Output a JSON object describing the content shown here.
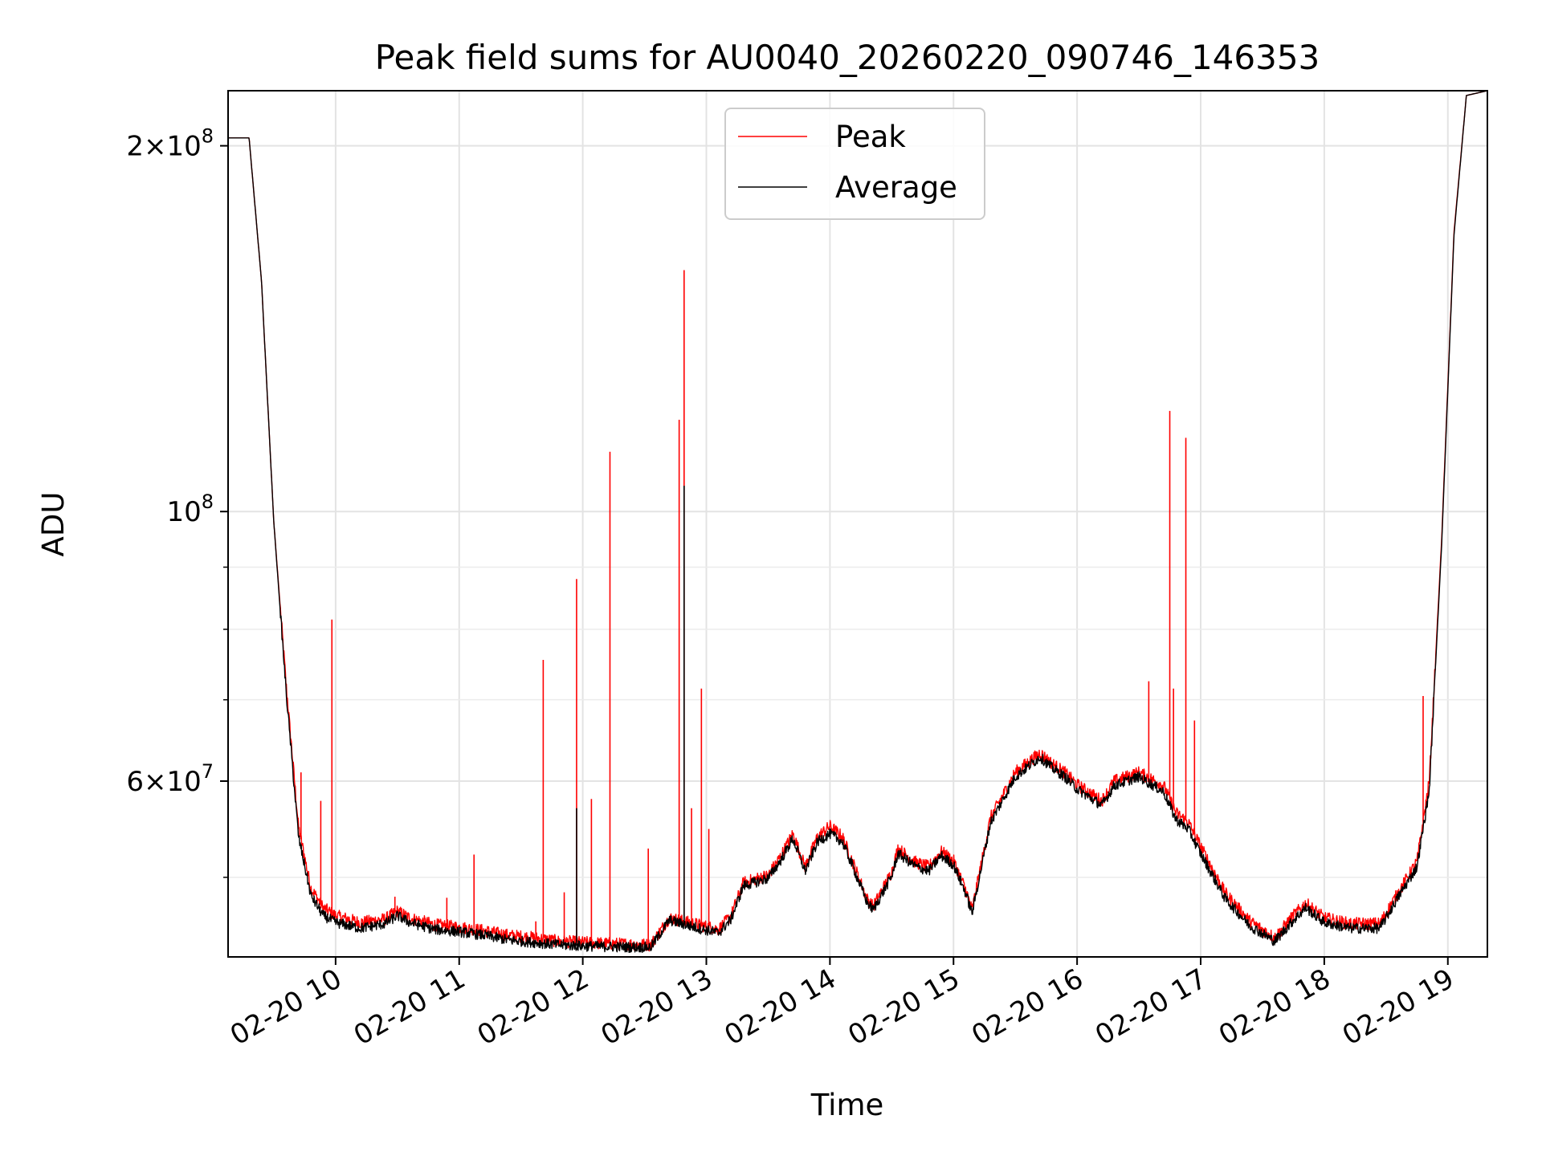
{
  "chart_data": {
    "type": "line",
    "title": "Peak field sums for AU0040_20260220_090746_146353",
    "xlabel": "Time",
    "ylabel": "ADU",
    "xaxis_type": "time",
    "x_tick_labels": [
      "02-20 10",
      "02-20 11",
      "02-20 12",
      "02-20 13",
      "02-20 14",
      "02-20 15",
      "02-20 16",
      "02-20 17",
      "02-20 18",
      "02-20 19"
    ],
    "x_ticks_hours": [
      10,
      11,
      12,
      13,
      14,
      15,
      16,
      17,
      18,
      19
    ],
    "xlim_hours": [
      9.13,
      19.32
    ],
    "yscale": "log",
    "ylim": [
      43000000,
      222000000
    ],
    "y_major_ticks": [
      {
        "value": 200000000,
        "mantissa": "2",
        "exponent": "8"
      },
      {
        "value": 100000000,
        "mantissa": "",
        "exponent": "8"
      },
      {
        "value": 60000000,
        "mantissa": "6",
        "exponent": "7"
      }
    ],
    "y_minor_ticks": [
      50000000,
      70000000,
      80000000,
      90000000
    ],
    "grid": true,
    "legend_position": "upper center",
    "series": [
      {
        "name": "Peak",
        "color": "#ff0000",
        "baseline": [
          [
            9.13,
            203000000
          ],
          [
            9.3,
            203000000
          ],
          [
            9.4,
            155000000
          ],
          [
            9.5,
            98000000
          ],
          [
            9.6,
            72000000
          ],
          [
            9.7,
            55000000
          ],
          [
            9.8,
            49000000
          ],
          [
            9.9,
            47200000
          ],
          [
            10.0,
            46500000
          ],
          [
            10.2,
            45900000
          ],
          [
            10.4,
            46200000
          ],
          [
            10.5,
            46900000
          ],
          [
            10.6,
            46300000
          ],
          [
            10.8,
            45700000
          ],
          [
            11.0,
            45500000
          ],
          [
            11.2,
            45200000
          ],
          [
            11.4,
            44800000
          ],
          [
            11.6,
            44600000
          ],
          [
            11.8,
            44300000
          ],
          [
            12.0,
            44200000
          ],
          [
            12.2,
            44100000
          ],
          [
            12.4,
            44050000
          ],
          [
            12.55,
            44000000
          ],
          [
            12.7,
            46300000
          ],
          [
            12.9,
            45800000
          ],
          [
            13.1,
            45300000
          ],
          [
            13.2,
            46500000
          ],
          [
            13.3,
            49500000
          ],
          [
            13.5,
            50200000
          ],
          [
            13.6,
            52000000
          ],
          [
            13.7,
            54300000
          ],
          [
            13.8,
            51000000
          ],
          [
            13.9,
            54000000
          ],
          [
            14.0,
            55100000
          ],
          [
            14.1,
            54000000
          ],
          [
            14.2,
            51000000
          ],
          [
            14.3,
            48000000
          ],
          [
            14.35,
            47300000
          ],
          [
            14.5,
            50500000
          ],
          [
            14.55,
            52800000
          ],
          [
            14.7,
            51400000
          ],
          [
            14.8,
            51000000
          ],
          [
            14.9,
            52500000
          ],
          [
            15.0,
            51600000
          ],
          [
            15.1,
            48800000
          ],
          [
            15.15,
            47000000
          ],
          [
            15.3,
            56000000
          ],
          [
            15.5,
            61000000
          ],
          [
            15.7,
            63300000
          ],
          [
            15.8,
            62000000
          ],
          [
            15.9,
            61000000
          ],
          [
            16.0,
            59600000
          ],
          [
            16.2,
            57800000
          ],
          [
            16.3,
            60000000
          ],
          [
            16.5,
            61000000
          ],
          [
            16.7,
            59500000
          ],
          [
            16.8,
            56500000
          ],
          [
            16.9,
            55500000
          ],
          [
            17.0,
            53000000
          ],
          [
            17.2,
            48500000
          ],
          [
            17.4,
            46000000
          ],
          [
            17.6,
            44600000
          ],
          [
            17.75,
            46500000
          ],
          [
            17.85,
            47600000
          ],
          [
            18.0,
            46300000
          ],
          [
            18.2,
            45800000
          ],
          [
            18.45,
            45800000
          ],
          [
            18.6,
            48600000
          ],
          [
            18.75,
            51500000
          ],
          [
            18.85,
            60000000
          ],
          [
            18.95,
            95000000
          ],
          [
            19.05,
            170000000
          ],
          [
            19.15,
            220000000
          ],
          [
            19.32,
            222000000
          ]
        ],
        "spikes": [
          [
            9.72,
            61000000
          ],
          [
            9.88,
            57800000
          ],
          [
            9.97,
            81500000
          ],
          [
            10.48,
            48200000
          ],
          [
            10.9,
            48100000
          ],
          [
            11.12,
            52200000
          ],
          [
            11.62,
            46000000
          ],
          [
            11.68,
            75500000
          ],
          [
            11.85,
            48600000
          ],
          [
            11.95,
            88000000
          ],
          [
            12.07,
            58000000
          ],
          [
            12.22,
            112000000
          ],
          [
            12.53,
            52800000
          ],
          [
            12.78,
            119000000
          ],
          [
            12.82,
            158000000
          ],
          [
            12.88,
            57000000
          ],
          [
            12.96,
            71500000
          ],
          [
            13.02,
            54800000
          ],
          [
            16.58,
            72500000
          ],
          [
            16.75,
            121000000
          ],
          [
            16.78,
            71500000
          ],
          [
            16.88,
            115000000
          ],
          [
            16.95,
            67300000
          ],
          [
            18.8,
            70500000
          ]
        ]
      },
      {
        "name": "Average",
        "color": "#000000",
        "baseline": [
          [
            9.13,
            203000000
          ],
          [
            9.3,
            203000000
          ],
          [
            9.4,
            155000000
          ],
          [
            9.5,
            98000000
          ],
          [
            9.6,
            71000000
          ],
          [
            9.7,
            54000000
          ],
          [
            9.8,
            48300000
          ],
          [
            9.9,
            46500000
          ],
          [
            10.0,
            45900000
          ],
          [
            10.2,
            45400000
          ],
          [
            10.4,
            45800000
          ],
          [
            10.5,
            46500000
          ],
          [
            10.6,
            45900000
          ],
          [
            10.8,
            45300000
          ],
          [
            11.0,
            45100000
          ],
          [
            11.2,
            44800000
          ],
          [
            11.4,
            44400000
          ],
          [
            11.6,
            44200000
          ],
          [
            11.8,
            44000000
          ],
          [
            12.0,
            43900000
          ],
          [
            12.2,
            43850000
          ],
          [
            12.4,
            43800000
          ],
          [
            12.55,
            43800000
          ],
          [
            12.7,
            46100000
          ],
          [
            12.9,
            45500000
          ],
          [
            13.1,
            45000000
          ],
          [
            13.2,
            46200000
          ],
          [
            13.3,
            49200000
          ],
          [
            13.5,
            49900000
          ],
          [
            13.6,
            51600000
          ],
          [
            13.7,
            53800000
          ],
          [
            13.8,
            50600000
          ],
          [
            13.9,
            53500000
          ],
          [
            14.0,
            54300000
          ],
          [
            14.1,
            53500000
          ],
          [
            14.2,
            50600000
          ],
          [
            14.3,
            47700000
          ],
          [
            14.35,
            47000000
          ],
          [
            14.5,
            50100000
          ],
          [
            14.55,
            52300000
          ],
          [
            14.7,
            51000000
          ],
          [
            14.8,
            50600000
          ],
          [
            14.9,
            52100000
          ],
          [
            15.0,
            51200000
          ],
          [
            15.1,
            48500000
          ],
          [
            15.15,
            46700000
          ],
          [
            15.3,
            55500000
          ],
          [
            15.5,
            60500000
          ],
          [
            15.7,
            62800000
          ],
          [
            15.8,
            61500000
          ],
          [
            15.9,
            60500000
          ],
          [
            16.0,
            59100000
          ],
          [
            16.2,
            57300000
          ],
          [
            16.3,
            59500000
          ],
          [
            16.5,
            60500000
          ],
          [
            16.7,
            58800000
          ],
          [
            16.8,
            55800000
          ],
          [
            16.9,
            54800000
          ],
          [
            17.0,
            52300000
          ],
          [
            17.2,
            48000000
          ],
          [
            17.4,
            45600000
          ],
          [
            17.6,
            44300000
          ],
          [
            17.75,
            46100000
          ],
          [
            17.85,
            47200000
          ],
          [
            18.0,
            45900000
          ],
          [
            18.2,
            45400000
          ],
          [
            18.45,
            45400000
          ],
          [
            18.6,
            48200000
          ],
          [
            18.75,
            51000000
          ],
          [
            18.85,
            59000000
          ],
          [
            18.95,
            94000000
          ],
          [
            19.05,
            169000000
          ],
          [
            19.15,
            220000000
          ],
          [
            19.32,
            222000000
          ]
        ],
        "spikes": [
          [
            11.95,
            57000000
          ],
          [
            12.82,
            105000000
          ]
        ]
      }
    ]
  }
}
